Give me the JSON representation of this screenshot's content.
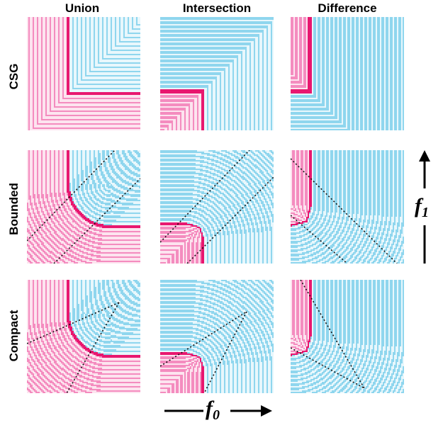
{
  "columns": [
    "Union",
    "Intersection",
    "Difference"
  ],
  "rows": [
    "CSG",
    "Bounded",
    "Compact"
  ],
  "axes": {
    "x_label": "f",
    "x_sub": "0",
    "y_label": "f",
    "y_sub": "1"
  },
  "colors": {
    "inside_stripe": "#f48cbf",
    "inside_bg": "#fde4ef",
    "outside_stripe": "#8fd6ee",
    "outside_bg": "#e8f7fc",
    "boundary": "#e8176f",
    "guide": "#111111"
  }
}
